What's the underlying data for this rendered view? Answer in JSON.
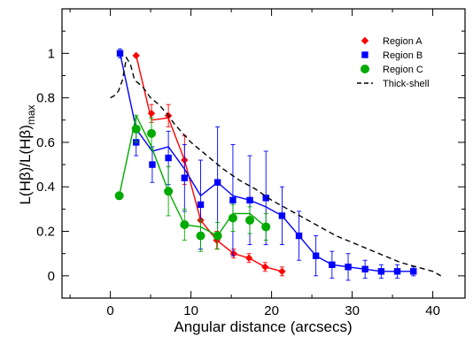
{
  "chart_data": {
    "type": "line",
    "xlabel": "Angular distance (arcsecs)",
    "ylabel_parts": [
      "L(Hβ)/L(Hβ)",
      "max"
    ],
    "xlim": [
      -6,
      44
    ],
    "ylim": [
      -0.1,
      1.2
    ],
    "xticks": [
      0,
      10,
      20,
      30,
      40
    ],
    "yticks": [
      0,
      0.2,
      0.4,
      0.6,
      0.8,
      1
    ],
    "ytick_labels": [
      "0",
      "0.2",
      "0.4",
      "0.6",
      "0.8",
      "1"
    ],
    "grid": false,
    "legend_position": "top-right",
    "series": [
      {
        "name": "Region A",
        "marker": "diamond",
        "color": "#ff0000",
        "x": [
          3.2,
          5.1,
          7.2,
          9.2,
          11.2,
          13.2,
          15.3,
          17.2,
          19.2,
          21.3
        ],
        "y": [
          0.99,
          0.73,
          0.72,
          0.52,
          0.25,
          0.16,
          0.1,
          0.08,
          0.04,
          0.02
        ],
        "err": [
          0.0,
          0.04,
          0.05,
          0.11,
          0.08,
          0.04,
          0.02,
          0.02,
          0.02,
          0.02
        ],
        "line_y": [
          0.99,
          0.7,
          0.71,
          0.52,
          0.25,
          0.16,
          0.1,
          0.08,
          0.04,
          0.02
        ]
      },
      {
        "name": "Region B",
        "marker": "square",
        "color": "#0000ff",
        "x": [
          1.2,
          3.2,
          5.2,
          7.2,
          9.2,
          11.2,
          13.3,
          15.2,
          17.3,
          19.3,
          21.3,
          23.4,
          25.5,
          27.5,
          29.5,
          31.6,
          33.6,
          35.6,
          37.6
        ],
        "y": [
          1.0,
          0.6,
          0.5,
          0.53,
          0.44,
          0.32,
          0.42,
          0.34,
          0.34,
          0.35,
          0.27,
          0.18,
          0.09,
          0.05,
          0.04,
          0.03,
          0.02,
          0.02,
          0.02
        ],
        "err": [
          0.02,
          0.06,
          0.08,
          0.12,
          0.15,
          0.2,
          0.25,
          0.25,
          0.2,
          0.21,
          0.13,
          0.11,
          0.09,
          0.06,
          0.06,
          0.04,
          0.03,
          0.03,
          0.02
        ],
        "line_y": [
          1.0,
          0.66,
          0.56,
          0.58,
          0.48,
          0.36,
          0.42,
          0.36,
          0.34,
          0.31,
          0.27,
          0.18,
          0.09,
          0.05,
          0.04,
          0.03,
          0.02,
          0.02,
          0.02
        ]
      },
      {
        "name": "Region C",
        "marker": "circle",
        "color": "#00aa00",
        "x": [
          1.1,
          3.2,
          5.1,
          7.2,
          9.2,
          11.2,
          13.3,
          15.2,
          17.3,
          19.3
        ],
        "y": [
          0.36,
          0.66,
          0.64,
          0.38,
          0.23,
          0.18,
          0.18,
          0.26,
          0.25,
          0.22
        ],
        "err": [
          0.0,
          0.06,
          0.07,
          0.11,
          0.07,
          0.07,
          0.06,
          0.06,
          0.06,
          0.06
        ],
        "line_y": [
          0.36,
          0.72,
          0.58,
          0.38,
          0.23,
          0.22,
          0.18,
          0.28,
          0.28,
          0.22
        ]
      },
      {
        "name": "Thick-shell",
        "style": "dashed",
        "color": "#000000",
        "x": [
          0,
          0.5,
          1,
          1.5,
          2,
          2.5,
          3,
          4,
          5,
          6,
          7,
          8,
          10,
          12,
          14,
          16,
          18,
          20,
          22,
          24,
          26,
          28,
          30,
          32,
          34,
          36,
          38,
          40,
          41
        ],
        "y": [
          0.8,
          0.81,
          0.83,
          0.88,
          0.98,
          0.95,
          0.88,
          0.85,
          0.8,
          0.77,
          0.73,
          0.68,
          0.6,
          0.54,
          0.48,
          0.43,
          0.39,
          0.34,
          0.3,
          0.26,
          0.22,
          0.18,
          0.15,
          0.12,
          0.09,
          0.06,
          0.04,
          0.02,
          0.0
        ]
      }
    ]
  }
}
